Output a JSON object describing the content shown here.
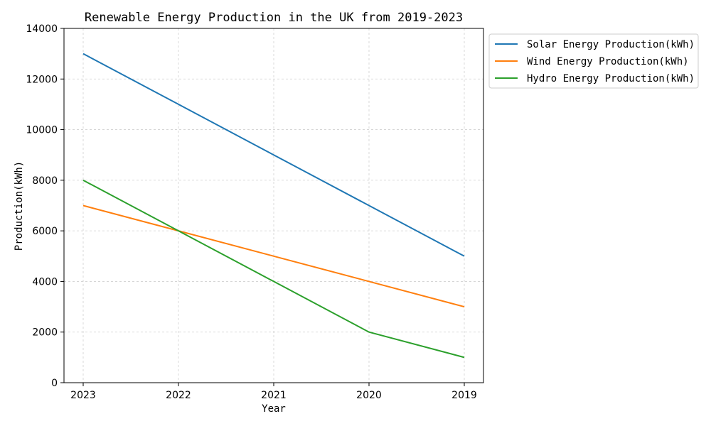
{
  "chart_data": {
    "type": "line",
    "title": "Renewable Energy Production in the UK from 2019-2023",
    "xlabel": "Year",
    "ylabel": "Production(kWh)",
    "categories": [
      "2023",
      "2022",
      "2021",
      "2020",
      "2019"
    ],
    "ylim": [
      0,
      14000
    ],
    "yticks": [
      0,
      2000,
      4000,
      6000,
      8000,
      10000,
      12000,
      14000
    ],
    "grid": true,
    "legend_position": "outside-top-right",
    "series": [
      {
        "name": "Solar Energy Production(kWh)",
        "values": [
          13000,
          11000,
          9000,
          7000,
          5000
        ],
        "color": "#1f77b4"
      },
      {
        "name": "Wind Energy Production(kWh)",
        "values": [
          7000,
          6000,
          5000,
          4000,
          3000
        ],
        "color": "#ff7f0e"
      },
      {
        "name": "Hydro Energy Production(kWh)",
        "values": [
          8000,
          6000,
          4000,
          2000,
          1000
        ],
        "color": "#2ca02c"
      }
    ]
  }
}
